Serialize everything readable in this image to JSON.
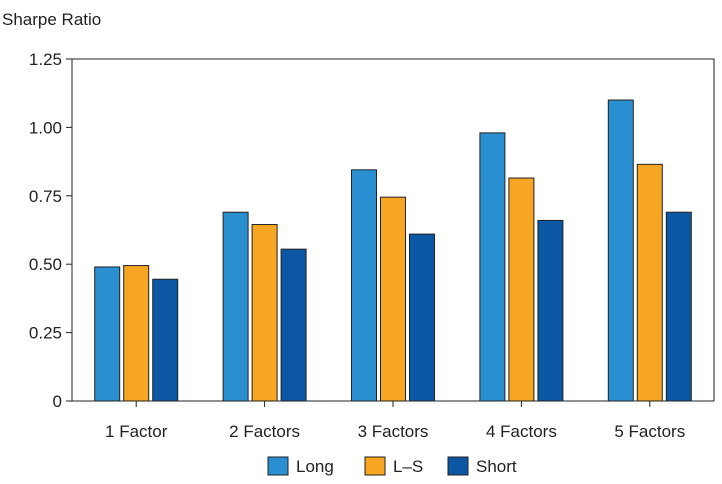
{
  "chart_data": {
    "type": "bar",
    "title": "",
    "xlabel": "",
    "ylabel": "Sharpe Ratio",
    "ylim": [
      0,
      1.25
    ],
    "yticks": [
      {
        "value": 0,
        "label": "0"
      },
      {
        "value": 0.25,
        "label": "0.25"
      },
      {
        "value": 0.5,
        "label": "0.50"
      },
      {
        "value": 0.75,
        "label": "0.75"
      },
      {
        "value": 1.0,
        "label": "1.00"
      },
      {
        "value": 1.25,
        "label": "1.25"
      }
    ],
    "grid": false,
    "legend_position": "bottom",
    "categories": [
      "1 Factor",
      "2 Factors",
      "3 Factors",
      "4 Factors",
      "5 Factors"
    ],
    "series": [
      {
        "name": "Long",
        "color": "#2A8FD1",
        "values": [
          0.49,
          0.69,
          0.845,
          0.98,
          1.1
        ]
      },
      {
        "name": "L–S",
        "color": "#F6A623",
        "values": [
          0.495,
          0.645,
          0.745,
          0.815,
          0.865
        ]
      },
      {
        "name": "Short",
        "color": "#0B57A4",
        "values": [
          0.445,
          0.555,
          0.61,
          0.66,
          0.69
        ]
      }
    ]
  }
}
